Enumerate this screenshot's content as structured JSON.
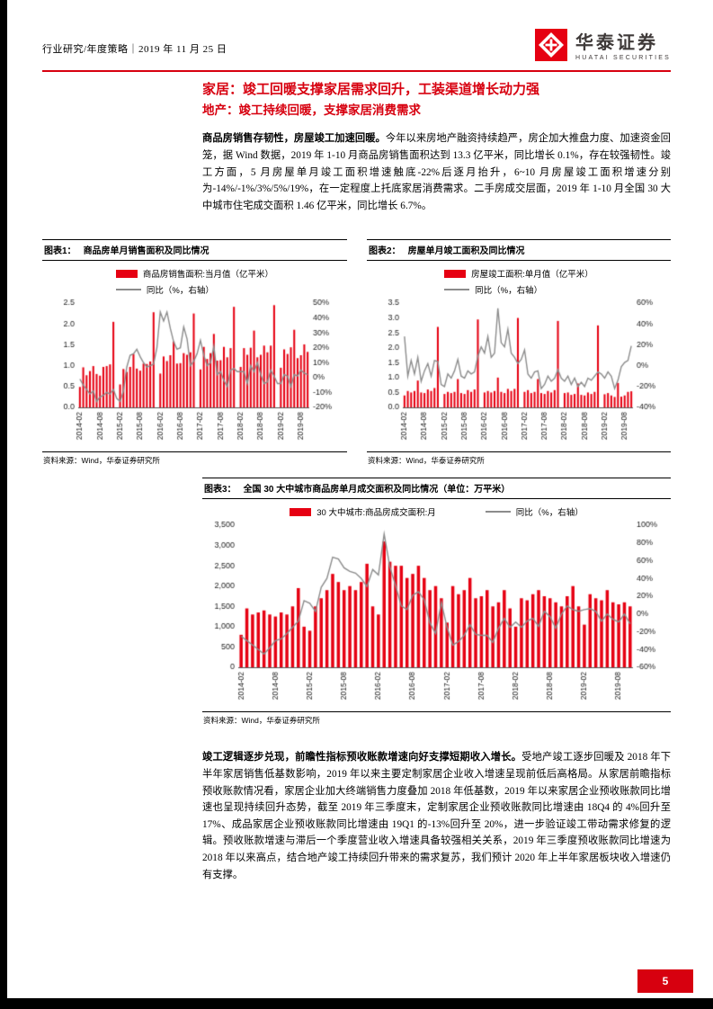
{
  "colors": {
    "accent_red": "#d7000f",
    "bar_red": "#e60012",
    "line_gray": "#8c8c8c",
    "logo_red": "#e60012"
  },
  "header": {
    "left_text": "行业研究/年度策略｜2019 年 11 月 25 日",
    "brand_cn": "华泰证券",
    "brand_en": "HUATAI SECURITIES"
  },
  "titles": {
    "main": "家居：竣工回暖支撑家居需求回升，工装渠道增长动力强",
    "sub": "地产：竣工持续回暖，支撑家居消费需求"
  },
  "paragraphs": {
    "p1_lead": "商品房销售存韧性，房屋竣工加速回暖。",
    "p1_body": "今年以来房地产融资持续趋严，房企加大推盘力度、加速资金回笼，据 Wind 数据，2019 年 1-10 月商品房销售面积达到 13.3 亿平米，同比增长 0.1%，存在较强韧性。竣工方面，5 月房屋单月竣工面积增速触底-22%后逐月抬升，6~10 月房屋竣工面积增速分别为-14%/-1%/3%/5%/19%，在一定程度上托底家居消费需求。二手房成交层面，2019 年 1-10 月全国 30 大中城市住宅成交面积 1.46 亿平米，同比增长 6.7%。",
    "p2_lead": "竣工逻辑逐步兑现，前瞻性指标预收账款增速向好支撑短期收入增长。",
    "p2_body": "受地产竣工逐步回暖及 2018 年下半年家居销售低基数影响，2019 年以来主要定制家居企业收入增速呈现前低后高格局。从家居前瞻指标预收账款情况看，家居企业加大终端销售力度叠加 2018 年低基数，2019 年以来家居企业预收账款同比增速也呈现持续回升态势，截至 2019 年三季度末，定制家居企业预收账款同比增速由 18Q4 的 4%回升至 17%、成品家居企业预收账款同比增速由 19Q1 的-13%回升至 20%，进一步验证竣工带动需求修复的逻辑。预收账款增速与滞后一个季度营业收入增速具备较强相关关系，2019 年三季度预收账款同比增速为 2018 年以来高点，结合地产竣工持续回升带来的需求复苏，我们预计 2020 年上半年家居板块收入增速仍有支撑。"
  },
  "figures": [
    {
      "label": "图表1：",
      "title": "商品房单月销售面积及同比情况",
      "source": "资料来源：Wind，华泰证券研究所"
    },
    {
      "label": "图表2：",
      "title": "房屋单月竣工面积及同比情况",
      "source": "资料来源：Wind，华泰证券研究所"
    },
    {
      "label": "图表3：",
      "title": "全国 30 大中城市商品房单月成交面积及同比情况（单位：万平米）",
      "source": "资料来源：Wind，华泰证券研究所"
    }
  ],
  "page_number": "5",
  "chart_data": [
    {
      "type": "bar+line",
      "title": "商品房单月销售面积及同比情况",
      "x_tick_every": 6,
      "left_ylim": [
        0,
        2.5
      ],
      "left_ticks": [
        0,
        0.5,
        1,
        1.5,
        2,
        2.5
      ],
      "left_tick_labels": [
        "0.0",
        "0.5",
        "1.0",
        "1.5",
        "2.0",
        "2.5"
      ],
      "right_ylim": [
        -20,
        50
      ],
      "right_ticks": [
        -20,
        -10,
        0,
        10,
        20,
        30,
        40,
        50
      ],
      "right_tick_labels": [
        "-20%",
        "-10%",
        "0%",
        "10%",
        "20%",
        "30%",
        "40%",
        "50%"
      ],
      "x": [
        "2014-02",
        "2014-03",
        "2014-04",
        "2014-05",
        "2014-06",
        "2014-07",
        "2014-08",
        "2014-09",
        "2014-10",
        "2014-11",
        "2014-12",
        "2015-01",
        "2015-02",
        "2015-03",
        "2015-04",
        "2015-05",
        "2015-06",
        "2015-07",
        "2015-08",
        "2015-09",
        "2015-10",
        "2015-11",
        "2015-12",
        "2016-01",
        "2016-02",
        "2016-03",
        "2016-04",
        "2016-05",
        "2016-06",
        "2016-07",
        "2016-08",
        "2016-09",
        "2016-10",
        "2016-11",
        "2016-12",
        "2017-01",
        "2017-02",
        "2017-03",
        "2017-04",
        "2017-05",
        "2017-06",
        "2017-07",
        "2017-08",
        "2017-09",
        "2017-10",
        "2017-11",
        "2017-12",
        "2018-01",
        "2018-02",
        "2018-03",
        "2018-04",
        "2018-05",
        "2018-06",
        "2018-07",
        "2018-08",
        "2018-09",
        "2018-10",
        "2018-11",
        "2018-12",
        "2019-01",
        "2019-02",
        "2019-03",
        "2019-04",
        "2019-05",
        "2019-06",
        "2019-07",
        "2019-08",
        "2019-09",
        "2019-10"
      ],
      "bar_series": {
        "name": "商品房销售面积:当月值（亿平米）",
        "axis": "left",
        "values": [
          0.49,
          0.96,
          0.77,
          0.87,
          0.99,
          0.8,
          0.76,
          0.97,
          0.99,
          1.03,
          2.05,
          0,
          0.55,
          0.92,
          0.85,
          0.97,
          1.28,
          0.93,
          0.88,
          1.05,
          1.04,
          1.1,
          2.28,
          0,
          0.81,
          1.22,
          1.11,
          1.25,
          1.58,
          1.05,
          1.06,
          1.3,
          1.26,
          1.32,
          2.25,
          0,
          0.91,
          1.45,
          1.16,
          1.3,
          1.76,
          1.12,
          1.13,
          1.45,
          1.2,
          1.42,
          2.41,
          0,
          0.97,
          1.42,
          1.26,
          1.43,
          1.84,
          1.2,
          1.26,
          1.48,
          1.32,
          1.48,
          2.45,
          0,
          0.95,
          1.39,
          1.28,
          1.44,
          1.86,
          1.18,
          1.25,
          1.51,
          1.33
        ]
      },
      "line_series": {
        "name": "同比（%，右轴）",
        "axis": "right",
        "values": [
          -1,
          -5,
          -8,
          -11,
          -9,
          -16,
          -13,
          -12,
          -10,
          -11,
          -8,
          -14,
          -16,
          -9,
          7,
          15,
          16,
          19,
          14,
          10,
          7,
          8,
          9,
          20,
          44,
          38,
          44,
          33,
          24,
          19,
          20,
          34,
          26,
          8,
          11,
          16,
          25,
          15,
          8,
          10,
          21,
          2,
          4,
          -2,
          -6,
          5,
          6,
          4,
          4,
          4,
          -4,
          8,
          4,
          10,
          2,
          -4,
          -3,
          5,
          1,
          -4,
          -4,
          2,
          1,
          -6,
          2,
          1,
          5,
          3,
          2
        ]
      }
    },
    {
      "type": "bar+line",
      "title": "房屋单月竣工面积及同比情况",
      "x_tick_every": 6,
      "left_ylim": [
        0,
        3.5
      ],
      "left_ticks": [
        0,
        0.5,
        1,
        1.5,
        2,
        2.5,
        3,
        3.5
      ],
      "left_tick_labels": [
        "0.0",
        "0.5",
        "1.0",
        "1.5",
        "2.0",
        "2.5",
        "3.0",
        "3.5"
      ],
      "right_ylim": [
        -40,
        60
      ],
      "right_ticks": [
        -40,
        -20,
        0,
        20,
        40,
        60
      ],
      "right_tick_labels": [
        "-40%",
        "-20%",
        "0%",
        "20%",
        "40%",
        "60%"
      ],
      "x": [
        "2014-02",
        "2014-03",
        "2014-04",
        "2014-05",
        "2014-06",
        "2014-07",
        "2014-08",
        "2014-09",
        "2014-10",
        "2014-11",
        "2014-12",
        "2015-01",
        "2015-02",
        "2015-03",
        "2015-04",
        "2015-05",
        "2015-06",
        "2015-07",
        "2015-08",
        "2015-09",
        "2015-10",
        "2015-11",
        "2015-12",
        "2016-01",
        "2016-02",
        "2016-03",
        "2016-04",
        "2016-05",
        "2016-06",
        "2016-07",
        "2016-08",
        "2016-09",
        "2016-10",
        "2016-11",
        "2016-12",
        "2017-01",
        "2017-02",
        "2017-03",
        "2017-04",
        "2017-05",
        "2017-06",
        "2017-07",
        "2017-08",
        "2017-09",
        "2017-10",
        "2017-11",
        "2017-12",
        "2018-01",
        "2018-02",
        "2018-03",
        "2018-04",
        "2018-05",
        "2018-06",
        "2018-07",
        "2018-08",
        "2018-09",
        "2018-10",
        "2018-11",
        "2018-12",
        "2019-01",
        "2019-02",
        "2019-03",
        "2019-04",
        "2019-05",
        "2019-06",
        "2019-07",
        "2019-08",
        "2019-09",
        "2019-10"
      ],
      "bar_series": {
        "name": "房屋竣工面积:单月值（亿平米）",
        "axis": "left",
        "values": [
          0.4,
          0.55,
          0.5,
          0.55,
          0.9,
          0.5,
          0.48,
          0.6,
          0.55,
          0.65,
          2.7,
          0,
          0.45,
          0.52,
          0.48,
          0.52,
          0.95,
          0.48,
          0.45,
          0.58,
          0.52,
          0.6,
          2.95,
          0,
          0.5,
          0.55,
          0.5,
          0.55,
          1.0,
          0.52,
          0.48,
          0.62,
          0.55,
          0.62,
          3.0,
          0,
          0.52,
          0.58,
          0.48,
          0.52,
          0.95,
          0.48,
          0.45,
          0.55,
          0.5,
          0.58,
          2.9,
          0,
          0.48,
          0.5,
          0.42,
          0.45,
          0.8,
          0.42,
          0.4,
          0.5,
          0.45,
          0.52,
          2.75,
          0,
          0.44,
          0.48,
          0.4,
          0.35,
          0.82,
          0.36,
          0.4,
          0.52,
          0.54
        ]
      },
      "line_series": {
        "name": "同比（%，右轴）",
        "axis": "right",
        "values": [
          28,
          -10,
          5,
          -8,
          8,
          -15,
          -5,
          2,
          -10,
          5,
          4,
          -18,
          -20,
          -8,
          -12,
          -5,
          6,
          -10,
          -12,
          -5,
          -8,
          -6,
          9,
          18,
          12,
          28,
          8,
          12,
          55,
          22,
          18,
          35,
          12,
          8,
          2,
          6,
          15,
          -8,
          -12,
          -6,
          -5,
          -22,
          -18,
          -10,
          -15,
          -12,
          -4,
          -12,
          -15,
          -10,
          -18,
          -12,
          -20,
          -16,
          -20,
          -12,
          -14,
          -10,
          -6,
          -8,
          -12,
          -6,
          -10,
          -22,
          -14,
          -1,
          3,
          5,
          19
        ]
      }
    },
    {
      "type": "bar+line",
      "title": "全国 30 大中城市商品房单月成交面积及同比情况（单位：万平米）",
      "x_tick_every": 6,
      "left_ylim": [
        0,
        3500
      ],
      "left_ticks": [
        0,
        500,
        1000,
        1500,
        2000,
        2500,
        3000,
        3500
      ],
      "left_tick_labels": [
        "0",
        "500",
        "1,000",
        "1,500",
        "2,000",
        "2,500",
        "3,000",
        "3,500"
      ],
      "right_ylim": [
        -60,
        100
      ],
      "right_ticks": [
        -60,
        -40,
        -20,
        0,
        20,
        40,
        60,
        80,
        100
      ],
      "right_tick_labels": [
        "-60%",
        "-40%",
        "-20%",
        "0%",
        "20%",
        "40%",
        "60%",
        "80%",
        "100%"
      ],
      "x": [
        "2014-02",
        "2014-03",
        "2014-04",
        "2014-05",
        "2014-06",
        "2014-07",
        "2014-08",
        "2014-09",
        "2014-10",
        "2014-11",
        "2014-12",
        "2015-01",
        "2015-02",
        "2015-03",
        "2015-04",
        "2015-05",
        "2015-06",
        "2015-07",
        "2015-08",
        "2015-09",
        "2015-10",
        "2015-11",
        "2015-12",
        "2016-01",
        "2016-02",
        "2016-03",
        "2016-04",
        "2016-05",
        "2016-06",
        "2016-07",
        "2016-08",
        "2016-09",
        "2016-10",
        "2016-11",
        "2016-12",
        "2017-01",
        "2017-02",
        "2017-03",
        "2017-04",
        "2017-05",
        "2017-06",
        "2017-07",
        "2017-08",
        "2017-09",
        "2017-10",
        "2017-11",
        "2017-12",
        "2018-01",
        "2018-02",
        "2018-03",
        "2018-04",
        "2018-05",
        "2018-06",
        "2018-07",
        "2018-08",
        "2018-09",
        "2018-10",
        "2018-11",
        "2018-12",
        "2019-01",
        "2019-02",
        "2019-03",
        "2019-04",
        "2019-05",
        "2019-06",
        "2019-07",
        "2019-08",
        "2019-09",
        "2019-10"
      ],
      "bar_series": {
        "name": "30 大中城市:商品房成交面积:月",
        "axis": "left",
        "values": [
          800,
          1450,
          1300,
          1350,
          1400,
          1300,
          1250,
          1350,
          1300,
          1500,
          1950,
          1000,
          900,
          1500,
          1700,
          1900,
          2300,
          2100,
          1900,
          2000,
          1900,
          2100,
          2550,
          1500,
          1300,
          3100,
          2600,
          2500,
          2500,
          2200,
          2300,
          2500,
          2200,
          1900,
          2000,
          1700,
          1100,
          2000,
          1800,
          1900,
          2200,
          1700,
          1750,
          1900,
          1500,
          1600,
          1900,
          1450,
          1000,
          1700,
          1650,
          1800,
          1900,
          1750,
          1700,
          1600,
          1500,
          1750,
          2000,
          1500,
          1050,
          1800,
          1700,
          1650,
          1900,
          1600,
          1550,
          1600,
          1500
        ]
      },
      "line_series": {
        "name": "同比（%，右轴）",
        "axis": "right",
        "values": [
          -25,
          -30,
          -35,
          -40,
          -45,
          -38,
          -30,
          -28,
          -22,
          -15,
          -8,
          15,
          12,
          3,
          30,
          40,
          64,
          62,
          52,
          48,
          46,
          40,
          31,
          50,
          44,
          90,
          53,
          32,
          9,
          5,
          21,
          25,
          16,
          -10,
          -22,
          13,
          -15,
          -35,
          -31,
          -24,
          -12,
          -23,
          -24,
          -24,
          -32,
          -16,
          -5,
          -15,
          -9,
          -15,
          -8,
          -5,
          -14,
          3,
          -3,
          -16,
          0,
          9,
          5,
          3,
          5,
          6,
          3,
          -8,
          0,
          -6,
          -9,
          0,
          -11
        ]
      }
    }
  ]
}
